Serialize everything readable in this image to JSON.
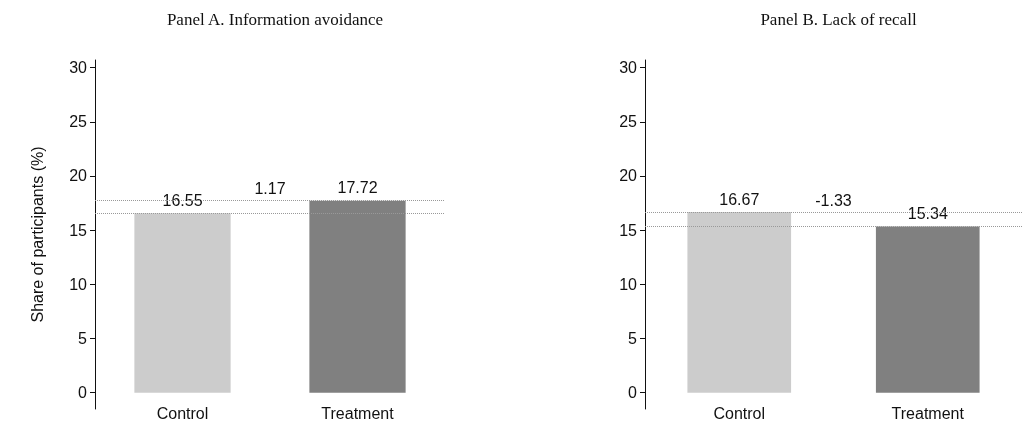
{
  "chart_data": [
    {
      "type": "bar",
      "title": "Panel A. Information avoidance",
      "ylabel": "Share of participants (%)",
      "categories": [
        "Control",
        "Treatment"
      ],
      "values": [
        16.55,
        17.72
      ],
      "colors": [
        "#cccccc",
        "#808080"
      ],
      "data_labels": true,
      "ylim": [
        -1.5,
        30.7
      ],
      "yticks": [
        0,
        5,
        10,
        15,
        20,
        25,
        30
      ],
      "ref_lines": [
        {
          "axis": "y",
          "value": 16.55,
          "color": "#999999",
          "line_style": "dotted"
        },
        {
          "axis": "y",
          "value": 17.72,
          "color": "#999999",
          "line_style": "dotted"
        }
      ],
      "annotations": [
        "1.17"
      ]
    },
    {
      "type": "bar",
      "title": "Panel B. Lack of recall",
      "categories": [
        "Control",
        "Treatment"
      ],
      "values": [
        16.67,
        15.34
      ],
      "colors": [
        "#cccccc",
        "#808080"
      ],
      "data_labels": true,
      "ylim": [
        -1.5,
        30.7
      ],
      "yticks": [
        0,
        5,
        10,
        15,
        20,
        25,
        30
      ],
      "ref_lines": [
        {
          "axis": "y",
          "value": 16.67,
          "color": "#999999",
          "line_style": "dotted"
        },
        {
          "axis": "y",
          "value": 15.34,
          "color": "#999999",
          "line_style": "dotted"
        }
      ],
      "annotations": [
        "-1.33"
      ]
    }
  ]
}
